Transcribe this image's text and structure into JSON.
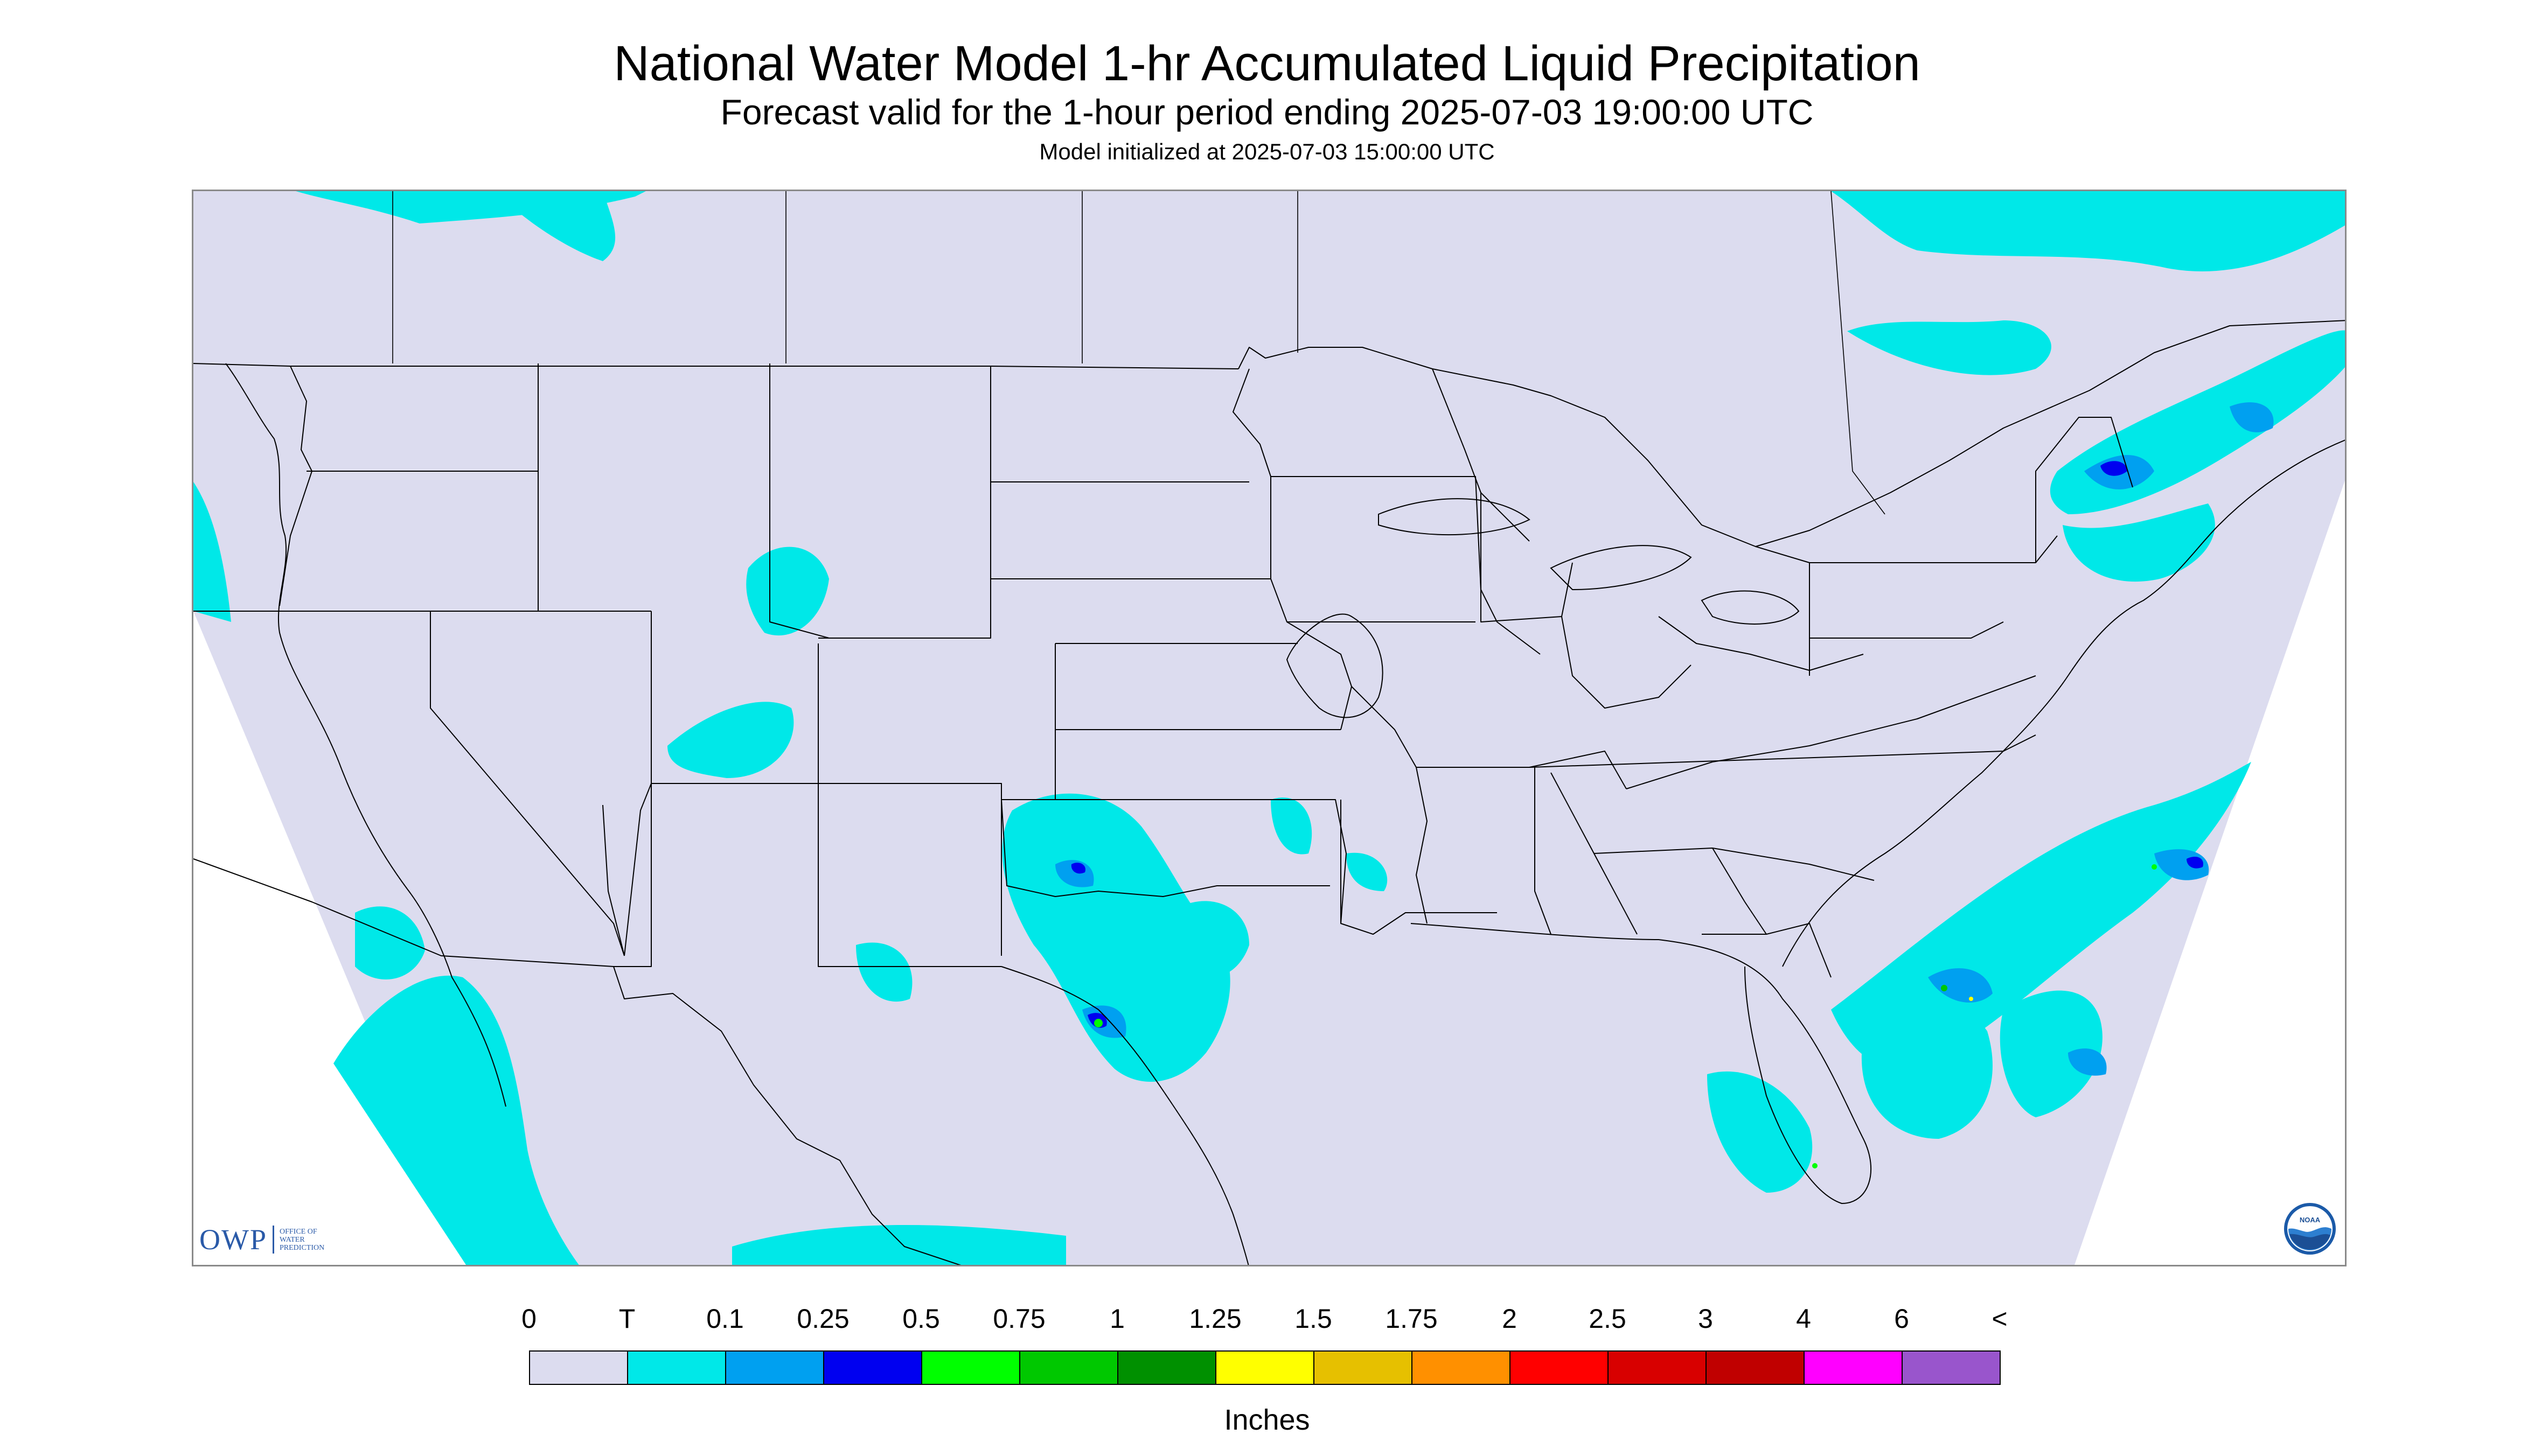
{
  "header": {
    "title": "National Water Model 1-hr Accumulated Liquid Precipitation",
    "subtitle": "Forecast valid for the 1-hour period ending 2025-07-03 19:00:00 UTC",
    "init_line": "Model initialized at 2025-07-03 15:00:00 UTC"
  },
  "logos": {
    "owp_letters": "OWP",
    "owp_line1": "OFFICE OF",
    "owp_line2": "WATER",
    "owp_line3": "PREDICTION",
    "noaa_text": "NOAA"
  },
  "legend": {
    "units": "Inches",
    "labels": [
      "0",
      "T",
      "0.1",
      "0.25",
      "0.5",
      "0.75",
      "1",
      "1.25",
      "1.5",
      "1.75",
      "2",
      "2.5",
      "3",
      "4",
      "6",
      "<"
    ],
    "colors": [
      "#dcdcef",
      "#00e8e8",
      "#00a0f0",
      "#0000f0",
      "#00ff00",
      "#00c800",
      "#009000",
      "#ffff00",
      "#e6c000",
      "#ff9000",
      "#ff0000",
      "#d80000",
      "#c00000",
      "#ff00ff",
      "#9955cc"
    ]
  },
  "map": {
    "background_color": "#dcdcef",
    "outside_color": "#ffffff",
    "boundary_color": "#000000"
  }
}
